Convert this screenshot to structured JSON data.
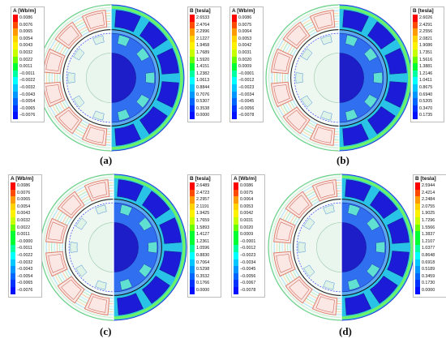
{
  "colors": {
    "scale": [
      "#ff0000",
      "#ff4a00",
      "#ff9a00",
      "#ffd200",
      "#fff200",
      "#c8ff00",
      "#6aff00",
      "#00ff33",
      "#00ffa0",
      "#00ffff",
      "#00c8ff",
      "#0096ff",
      "#0064ff",
      "#0032ff",
      "#0010ff"
    ],
    "field_low": "#1b1bd8",
    "field_mid": "#29c3e8",
    "field_high": "#7dff4a",
    "magnet_red": "#e08070"
  },
  "panels": [
    {
      "id": "a",
      "caption": "(a)",
      "flux_legend": {
        "title": "A [Wb/m]",
        "ticks": [
          "0.0086",
          "0.0076",
          "0.0065",
          "0.0054",
          "0.0043",
          "0.0032",
          "0.0022",
          "0.0011",
          "−0.0011",
          "−0.0022",
          "−0.0032",
          "−0.0043",
          "−0.0054",
          "−0.0065",
          "−0.0076"
        ]
      },
      "b_legend": {
        "title": "B [tesla]",
        "ticks": [
          "2.6533",
          "2.4764",
          "2.2996",
          "2.1227",
          "1.9458",
          "1.7689",
          "1.5920",
          "1.4151",
          "1.2382",
          "1.0613",
          "0.8844",
          "0.7076",
          "0.5307",
          "0.3538",
          "0.0000"
        ]
      }
    },
    {
      "id": "b",
      "caption": "(b)",
      "flux_legend": {
        "title": "A [Wb/m]",
        "ticks": [
          "0.0086",
          "0.0075",
          "0.0064",
          "0.0053",
          "0.0042",
          "0.0031",
          "0.0020",
          "0.0009",
          "−0.0001",
          "−0.0012",
          "−0.0023",
          "−0.0034",
          "−0.0045",
          "−0.0056",
          "−0.0078"
        ]
      },
      "b_legend": {
        "title": "B [tesla]",
        "ticks": [
          "2.6026",
          "2.4291",
          "2.2556",
          "2.0821",
          "1.9086",
          "1.7351",
          "1.5616",
          "1.3881",
          "1.2146",
          "1.0411",
          "0.8675",
          "0.6940",
          "0.5205",
          "0.3470",
          "0.1735"
        ]
      }
    },
    {
      "id": "c",
      "caption": "(c)",
      "flux_legend": {
        "title": "A [Wb/m]",
        "ticks": [
          "0.0086",
          "0.0076",
          "0.0065",
          "0.0054",
          "0.0043",
          "0.0032",
          "0.0022",
          "0.0011",
          "−0.0000",
          "−0.0011",
          "−0.0022",
          "−0.0032",
          "−0.0043",
          "−0.0054",
          "−0.0065",
          "−0.0076"
        ]
      },
      "b_legend": {
        "title": "B [tesla]",
        "ticks": [
          "2.6489",
          "2.4723",
          "2.2957",
          "2.1191",
          "1.9425",
          "1.7659",
          "1.5893",
          "1.4127",
          "1.2361",
          "1.0596",
          "0.8830",
          "0.7064",
          "0.5298",
          "0.3532",
          "0.1766",
          "0.0000"
        ]
      }
    },
    {
      "id": "d",
      "caption": "(d)",
      "flux_legend": {
        "title": "A [Wb/m]",
        "ticks": [
          "0.0086",
          "0.0075",
          "0.0064",
          "0.0053",
          "0.0042",
          "0.0031",
          "0.0020",
          "0.0009",
          "−0.0001",
          "−0.0012",
          "−0.0023",
          "−0.0034",
          "−0.0045",
          "−0.0056",
          "−0.0067",
          "−0.0078"
        ]
      },
      "b_legend": {
        "title": "B [tesla]",
        "ticks": [
          "2.5944",
          "2.4214",
          "2.2484",
          "2.0755",
          "1.9025",
          "1.7296",
          "1.5566",
          "1.3837",
          "1.2107",
          "1.0377",
          "0.8648",
          "0.6918",
          "0.5189",
          "0.3459",
          "0.1730",
          "0.0000"
        ]
      }
    }
  ]
}
